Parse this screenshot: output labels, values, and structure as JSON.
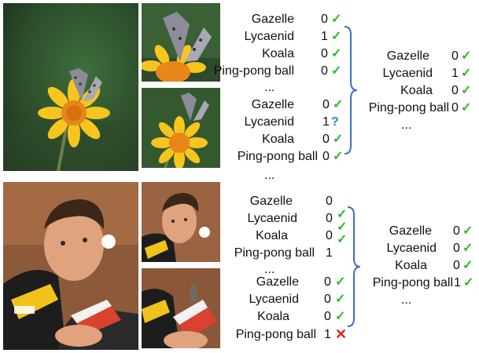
{
  "panels": [
    {
      "name": "butterfly",
      "crops": [
        {
          "rows": [
            {
              "label": "Gazelle",
              "value": "0",
              "mark": "check"
            },
            {
              "label": "Lycaenid",
              "value": "1",
              "mark": "check"
            },
            {
              "label": "Koala",
              "value": "0",
              "mark": "check"
            },
            {
              "label": "Ping-pong ball",
              "value": "0",
              "mark": "check"
            }
          ],
          "ellipsis": "..."
        },
        {
          "rows": [
            {
              "label": "Gazelle",
              "value": "0",
              "mark": "check"
            },
            {
              "label": "Lycaenid",
              "value": "1",
              "mark": "question"
            },
            {
              "label": "Koala",
              "value": "0",
              "mark": "check"
            },
            {
              "label": "Ping-pong ball",
              "value": "0",
              "mark": "check"
            }
          ],
          "ellipsis": "..."
        }
      ],
      "merged": {
        "rows": [
          {
            "label": "Gazelle",
            "value": "0",
            "mark": "check"
          },
          {
            "label": "Lycaenid",
            "value": "1",
            "mark": "check"
          },
          {
            "label": "Koala",
            "value": "0",
            "mark": "check"
          },
          {
            "label": "Ping-pong ball",
            "value": "0",
            "mark": "check"
          }
        ],
        "ellipsis": "..."
      }
    },
    {
      "name": "ping-pong",
      "crops": [
        {
          "rows": [
            {
              "label": "Gazelle",
              "value": "0",
              "mark": "none"
            },
            {
              "label": "Lycaenid",
              "value": "0",
              "mark": "check"
            },
            {
              "label": "Koala",
              "value": "0",
              "mark": "check"
            },
            {
              "label": "Ping-pong ball",
              "value": "1",
              "mark": "check"
            }
          ],
          "ellipsis": "..."
        },
        {
          "rows": [
            {
              "label": "Gazelle",
              "value": "0",
              "mark": "check"
            },
            {
              "label": "Lycaenid",
              "value": "0",
              "mark": "check"
            },
            {
              "label": "Koala",
              "value": "0",
              "mark": "check"
            },
            {
              "label": "Ping-pong ball",
              "value": "1",
              "mark": "cross"
            }
          ],
          "ellipsis": ""
        }
      ],
      "merged": {
        "rows": [
          {
            "label": "Gazelle",
            "value": "0",
            "mark": "check"
          },
          {
            "label": "Lycaenid",
            "value": "0",
            "mark": "check"
          },
          {
            "label": "Koala",
            "value": "0",
            "mark": "check"
          },
          {
            "label": "Ping-pong ball",
            "value": "1",
            "mark": "check"
          }
        ],
        "ellipsis": "..."
      }
    }
  ],
  "mark_glyphs": {
    "check": "✓",
    "question": "?",
    "cross": "✕",
    "none": ""
  },
  "colors": {
    "check": "#2db82d",
    "question": "#1e8ad6",
    "cross": "#e0201b",
    "brace": "#3a6fc4"
  }
}
